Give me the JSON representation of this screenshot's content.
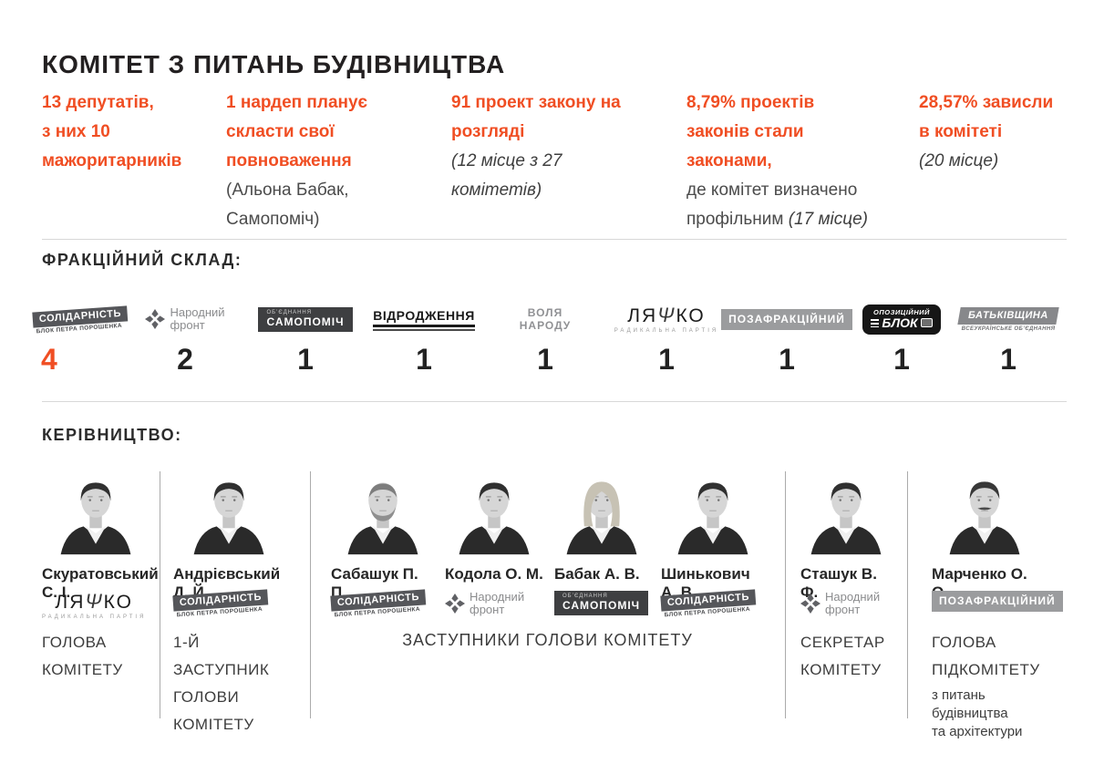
{
  "title": "КОМІТЕТ З ПИТАНЬ БУДІВНИЦТВА",
  "accent_color": "#f04e23",
  "stats": [
    {
      "highlight": "13 депутатів,\nз них 10\nмажоритарників",
      "note": "",
      "note_italic": ""
    },
    {
      "highlight": "1 нардеп планує\nскласти свої\nповноваження",
      "note": "(Альона Бабак,\nСамопоміч)",
      "note_italic": ""
    },
    {
      "highlight": "91 проект закону на\nрозгляді",
      "note": "",
      "note_italic": "(12 місце з 27\nкомітетів)"
    },
    {
      "highlight": "8,79% проектів\nзаконів стали\nзаконами,",
      "note": "де комітет визначено\nпрофільним ",
      "note_italic": "(17 місце)"
    },
    {
      "highlight": "28,57% зависли\nв комітеті",
      "note": "",
      "note_italic": "(20 місце)"
    }
  ],
  "fractions": {
    "heading": "ФРАКЦІЙНИЙ СКЛАД:",
    "items": [
      {
        "party": "solidarnist",
        "count": "4",
        "accent": true
      },
      {
        "party": "narodnyi_front",
        "count": "2",
        "accent": false
      },
      {
        "party": "samopomich",
        "count": "1",
        "accent": false
      },
      {
        "party": "vidrodzhennia",
        "count": "1",
        "accent": false
      },
      {
        "party": "volia_narodu",
        "count": "1",
        "accent": false
      },
      {
        "party": "liashko",
        "count": "1",
        "accent": false
      },
      {
        "party": "pozafraktsiinyi",
        "count": "1",
        "accent": false
      },
      {
        "party": "opozytsiinyi_blok",
        "count": "1",
        "accent": false
      },
      {
        "party": "batkivshchyna",
        "count": "1",
        "accent": false
      }
    ]
  },
  "party_logos": {
    "solidarnist": {
      "line1": "СОЛІДАРНІСТЬ",
      "line2": "БЛОК ПЕТРА ПОРОШЕНКА"
    },
    "narodnyi_front": {
      "line1": "Народний",
      "line2": "фронт"
    },
    "samopomich": {
      "line1": "ОБ’ЄДНАННЯ",
      "line2": "САМОПОМІЧ"
    },
    "vidrodzhennia": {
      "line1": "ВІДРОДЖЕННЯ"
    },
    "volia_narodu": {
      "line1": "ВОЛЯ",
      "line2": "НАРОДУ"
    },
    "liashko": {
      "line1a": "ЛЯ",
      "trident": "Ψ",
      "line1b": "КО",
      "line2": "РАДИКАЛЬНА ПАРТІЯ"
    },
    "pozafraktsiinyi": {
      "line1": "ПОЗАФРАКЦІЙНИЙ"
    },
    "opozytsiinyi_blok": {
      "line1": "ОПОЗИЦІЙНИЙ",
      "line2": "БЛОК"
    },
    "batkivshchyna": {
      "line1": "БАТЬКІВЩИНА",
      "line2": "ВСЕУКРАЇНСЬКЕ ОБ’ЄДНАННЯ"
    }
  },
  "leadership": {
    "heading": "КЕРІВНИЦТВО:",
    "group_role": "ЗАСТУПНИКИ ГОЛОВИ КОМІТЕТУ",
    "people": [
      {
        "name": "Скуратовський С. І.",
        "party": "liashko",
        "role": "ГОЛОВА\nКОМІТЕТУ",
        "role_sub": ""
      },
      {
        "name": "Андрієвський Д. Й.",
        "party": "solidarnist",
        "role": "1-Й ЗАСТУПНИК\nГОЛОВИ\nКОМІТЕТУ",
        "role_sub": ""
      },
      {
        "name": "Сабашук П. П.",
        "party": "solidarnist",
        "role": "",
        "role_sub": ""
      },
      {
        "name": "Кодола О. М.",
        "party": "narodnyi_front",
        "role": "",
        "role_sub": ""
      },
      {
        "name": "Бабак А. В.",
        "party": "samopomich",
        "role": "",
        "role_sub": ""
      },
      {
        "name": "Шинькович А. В.",
        "party": "solidarnist",
        "role": "",
        "role_sub": ""
      },
      {
        "name": "Сташук В. Ф.",
        "party": "narodnyi_front",
        "role": "СЕКРЕТАР\nКОМІТЕТУ",
        "role_sub": ""
      },
      {
        "name": "Марченко О. О.",
        "party": "pozafraktsiinyi",
        "role": "ГОЛОВА\nПІДКОМІТЕТУ",
        "role_sub": "з питань\nбудівництва\nта архітектури"
      }
    ]
  }
}
